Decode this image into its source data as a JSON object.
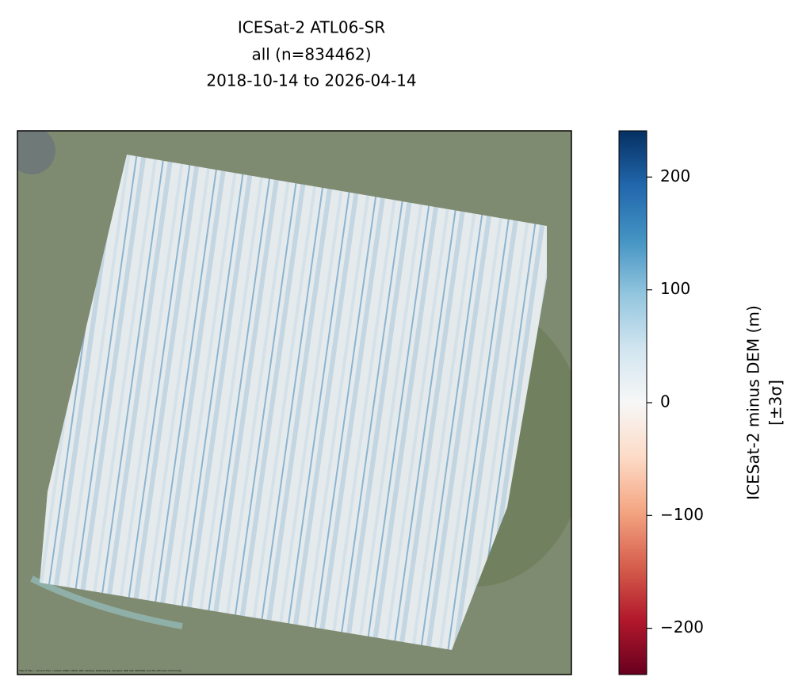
{
  "chart_data": {
    "type": "map",
    "title": [
      "ICESat-2 ATL06-SR",
      "all (n=834462)",
      "2018-10-14 to 2026-04-14"
    ],
    "attribution": "Tiles © Esri — Source: Esri, i-cubed, USDA, USGS, AEX, GeoEye, Getmapping, Aerogrid, IGN, IGP, UPR-EGP, and the GIS User Community",
    "colorbar": {
      "label": [
        "ICESat-2 minus DEM (m)",
        "[±3σ]"
      ],
      "clim": [
        -241,
        241
      ],
      "ticks": [
        {
          "value": -200,
          "label": "−200"
        },
        {
          "value": -100,
          "label": "−100"
        },
        0,
        100,
        200
      ],
      "colormap": [
        "#67001f",
        "#b2182b",
        "#d6604d",
        "#f4a582",
        "#fddbc7",
        "#f7f7f7",
        "#d1e5f0",
        "#92c5de",
        "#4393c3",
        "#2166ac",
        "#053061"
      ]
    }
  }
}
